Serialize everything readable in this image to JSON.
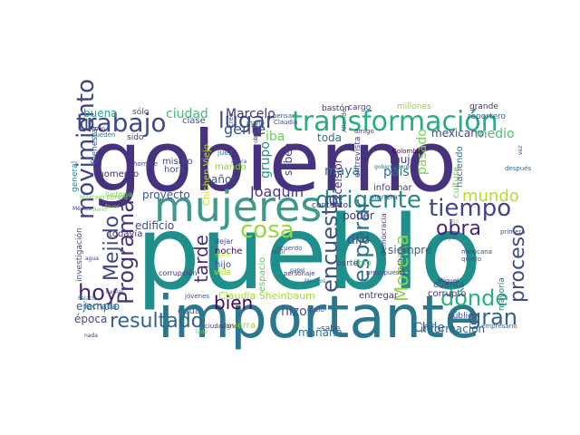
{
  "word_cloud": {
    "words": [
      {
        "text": "gobierno",
        "color": "#46327e"
      },
      {
        "text": "pueblo",
        "color": "#1f8f8b"
      },
      {
        "text": "importante",
        "color": "#2a788e"
      },
      {
        "text": "mujeres",
        "color": "#3b9a89"
      },
      {
        "text": "transformación",
        "color": "#27ad81"
      },
      {
        "text": "trabajo",
        "color": "#3e4989"
      },
      {
        "text": "movimiento",
        "color": "#404387"
      },
      {
        "text": "tiempo",
        "color": "#414487"
      },
      {
        "text": "dirigente",
        "color": "#23898e"
      },
      {
        "text": "lugar",
        "color": "#3e4a89"
      },
      {
        "text": "Programa",
        "color": "#46337e"
      },
      {
        "text": "hoy",
        "color": "#482475"
      },
      {
        "text": "Mejido",
        "color": "#3f4788"
      },
      {
        "text": "cosa",
        "color": "#95d840"
      },
      {
        "text": "encuesta",
        "color": "#3b528b"
      },
      {
        "text": "obra",
        "color": "#482878"
      },
      {
        "text": "mundo",
        "color": "#b5de2b"
      },
      {
        "text": "esperar",
        "color": "#2c728e"
      },
      {
        "text": "dónde",
        "color": "#2ab07f"
      },
      {
        "text": "proceso",
        "color": "#3e4a89"
      },
      {
        "text": "gran",
        "color": "#355f8d"
      },
      {
        "text": "resultado",
        "color": "#33638d"
      },
      {
        "text": "Morena",
        "color": "#8fd744"
      },
      {
        "text": "tarde",
        "color": "#472d7b"
      },
      {
        "text": "bien",
        "color": "#46085c"
      },
      {
        "text": "gente",
        "color": "#3b518b"
      },
      {
        "text": "Joaquín",
        "color": "#443983"
      },
      {
        "text": "ciudad",
        "color": "#3dbc74"
      },
      {
        "text": "proyecto",
        "color": "#3b528b"
      },
      {
        "text": "edificio",
        "color": "#3e4c8a"
      },
      {
        "text": "Marcelo",
        "color": "#46307e"
      },
      {
        "text": "toda",
        "color": "#2d708e"
      },
      {
        "text": "buena",
        "color": "#21a685"
      },
      {
        "text": "años",
        "color": "#39558c"
      },
      {
        "text": "iba",
        "color": "#6ece58"
      },
      {
        "text": "hizo",
        "color": "#3a548c"
      },
      {
        "text": "grupo",
        "color": "#21918c"
      },
      {
        "text": "saben",
        "color": "#414487"
      },
      {
        "text": "maya",
        "color": "#2d708e"
      },
      {
        "text": "país",
        "color": "#2b748e"
      },
      {
        "text": "mujer",
        "color": "#46337e"
      },
      {
        "text": "pasado",
        "color": "#7ad151"
      },
      {
        "text": "dijo",
        "color": "#3b528b"
      },
      {
        "text": "poder",
        "color": "#46327e"
      },
      {
        "text": "siempre",
        "color": "#375a8c"
      },
      {
        "text": "mexicano",
        "color": "#414487"
      },
      {
        "text": "medio",
        "color": "#48c16e"
      },
      {
        "text": "información",
        "color": "#33638d"
      },
      {
        "text": "Chile",
        "color": "#31688e"
      },
      {
        "text": "mañana",
        "color": "#2c738e"
      },
      {
        "text": "época",
        "color": "#3e4989"
      },
      {
        "text": "ejemplo",
        "color": "#31688e"
      },
      {
        "text": "espacio",
        "color": "#5ec962"
      },
      {
        "text": "Claudia Sheinbaum",
        "color": "#a0da39"
      },
      {
        "text": "entregar",
        "color": "#46307e"
      },
      {
        "text": "corrupto",
        "color": "#472f7d"
      },
      {
        "text": "cuenta",
        "color": "#3b528b"
      },
      {
        "text": "política",
        "color": "#365d8d"
      },
      {
        "text": "cultura",
        "color": "#6ece58"
      },
      {
        "text": "informar",
        "color": "#443a83"
      },
      {
        "text": "haciendo",
        "color": "#2e6e8e"
      },
      {
        "text": "Excélsior",
        "color": "#46337e"
      },
      {
        "text": "Chichen Viejo",
        "color": "#c2df23"
      },
      {
        "text": "mando",
        "color": "#8fd744"
      },
      {
        "text": "hora",
        "color": "#3b528b"
      },
      {
        "text": "mismo",
        "color": "#3f4788"
      },
      {
        "text": "clase",
        "color": "#39568c"
      },
      {
        "text": "momento",
        "color": "#482878"
      },
      {
        "text": "Bienestar",
        "color": "#3b528b"
      },
      {
        "text": "general",
        "color": "#27808e"
      },
      {
        "text": "sólo",
        "color": "#404387"
      },
      {
        "text": "sido",
        "color": "#46327e"
      },
      {
        "text": "pueden",
        "color": "#2e6d8e"
      },
      {
        "text": "todavía",
        "color": "#472a7a"
      },
      {
        "text": "investigación",
        "color": "#3e4a89"
      },
      {
        "text": "fachada",
        "color": "#31688e"
      },
      {
        "text": "duda",
        "color": "#2d708e"
      },
      {
        "text": "noche",
        "color": "#440154"
      },
      {
        "text": "hijo",
        "color": "#3b528b"
      },
      {
        "text": "vida",
        "color": "#b5de2b"
      },
      {
        "text": "guerra",
        "color": "#95d840"
      },
      {
        "text": "sabe",
        "color": "#3e4989"
      },
      {
        "text": "público",
        "color": "#3b528b"
      },
      {
        "text": "mayoría",
        "color": "#2a778e"
      },
      {
        "text": "empresario",
        "color": "#33638d"
      },
      {
        "text": "cargo",
        "color": "#414487"
      },
      {
        "text": "bastón",
        "color": "#472f7d"
      },
      {
        "text": "millones",
        "color": "#8fd744"
      },
      {
        "text": "grande",
        "color": "#46337e"
      },
      {
        "text": "reportero",
        "color": "#33638d"
      },
      {
        "text": "libro",
        "color": "#5ec962"
      },
      {
        "text": "entrevista",
        "color": "#414487"
      },
      {
        "text": "contento",
        "color": "#46327e"
      },
      {
        "text": "parte",
        "color": "#3b528b"
      },
      {
        "text": "democracia",
        "color": "#46337e"
      },
      {
        "text": "creo",
        "color": "#3e4989"
      },
      {
        "text": "mano",
        "color": "#31688e"
      },
      {
        "text": "historia",
        "color": "#7ad151"
      },
      {
        "text": "después",
        "color": "#2c728e"
      },
      {
        "text": "Colombia",
        "color": "#440154"
      },
      {
        "text": "primera",
        "color": "#3b528b"
      },
      {
        "text": "pensar",
        "color": "#3b528b"
      },
      {
        "text": "Claudia",
        "color": "#3e4989"
      },
      {
        "text": "amigo",
        "color": "#46337e"
      },
      {
        "text": "Allende",
        "color": "#2c728e"
      },
      {
        "text": "vez",
        "color": "#3b528b"
      },
      {
        "text": "manera",
        "color": "#3b528b"
      },
      {
        "text": "presupuesto",
        "color": "#3e4989"
      },
      {
        "text": "Miguel",
        "color": "#46327e"
      },
      {
        "text": "acuerdo",
        "color": "#3b528b"
      },
      {
        "text": "oficio",
        "color": "#3b528b"
      },
      {
        "text": "dejar",
        "color": "#414487"
      },
      {
        "text": "diario",
        "color": "#b5de2b"
      },
      {
        "text": "jóvenes",
        "color": "#3b528b"
      },
      {
        "text": "hombre",
        "color": "#3e4989"
      },
      {
        "text": "mayor",
        "color": "#31688e"
      },
      {
        "text": "quiero",
        "color": "#3b528b"
      },
      {
        "text": "mexicana",
        "color": "#414487"
      },
      {
        "text": "corrupción",
        "color": "#46337e"
      },
      {
        "text": "dio",
        "color": "#95d840"
      },
      {
        "text": "Marcelo Ebrard",
        "color": "#7ad151"
      },
      {
        "text": "gobernadores",
        "color": "#2c728e"
      },
      {
        "text": "buen",
        "color": "#440154"
      },
      {
        "text": "obrador",
        "color": "#3e4989"
      },
      {
        "text": "personaje",
        "color": "#46337e"
      },
      {
        "text": "juez",
        "color": "#2c728e"
      },
      {
        "text": "ahora",
        "color": "#3b528b"
      },
      {
        "text": "lado",
        "color": "#5ec962"
      },
      {
        "text": "ciudadano",
        "color": "#46327e"
      },
      {
        "text": "diario",
        "color": "#7ad151"
      },
      {
        "text": "México",
        "color": "#3e4989"
      },
      {
        "text": "favor",
        "color": "#8fd744"
      },
      {
        "text": "hablar",
        "color": "#3b528b"
      },
      {
        "text": "agua",
        "color": "#46337e"
      },
      {
        "text": "decir",
        "color": "#3b528b"
      },
      {
        "text": "Palacio",
        "color": "#2c728e"
      },
      {
        "text": "papel",
        "color": "#3b528b"
      },
      {
        "text": "Morelos",
        "color": "#2c728e"
      },
      {
        "text": "nada",
        "color": "#46327e"
      },
      {
        "text": "señor",
        "color": "#3b528b"
      }
    ]
  }
}
